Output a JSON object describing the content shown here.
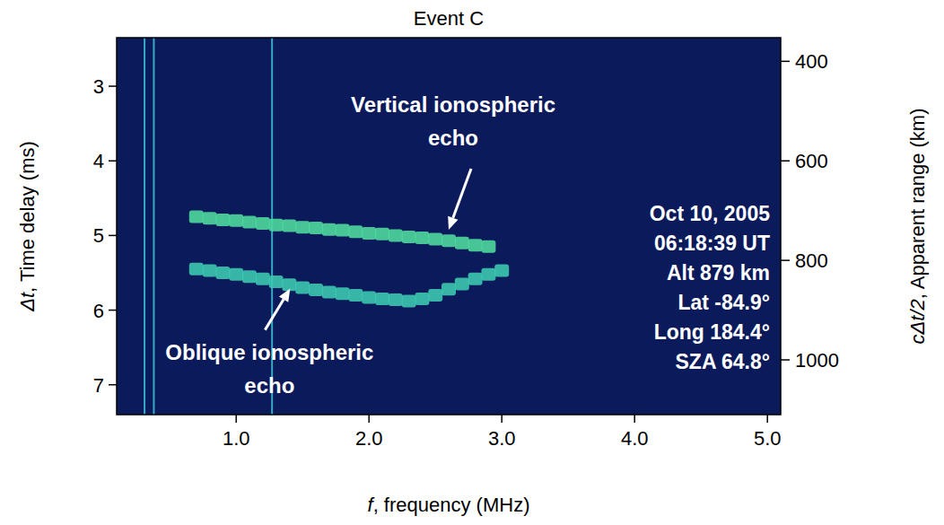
{
  "chart_data": {
    "type": "ionogram",
    "title": "Event C",
    "x_label": "f, frequency (MHz)",
    "y_label": "Δt, Time delay (ms)",
    "y2_label": "cΔt/2, Apparent range (km)",
    "xlim": [
      0.1,
      5.1
    ],
    "xticks": [
      {
        "value": 1,
        "label": "1.0"
      },
      {
        "value": 2,
        "label": "2.0"
      },
      {
        "value": 3,
        "label": "3.0"
      },
      {
        "value": 4,
        "label": "4.0"
      },
      {
        "value": 5,
        "label": "5.0"
      }
    ],
    "ylim": [
      2.35,
      7.4
    ],
    "yticks": [
      3,
      4,
      5,
      6,
      7
    ],
    "y2lim": [
      352.5,
      1110
    ],
    "y2ticks": [
      400,
      600,
      800,
      1000
    ],
    "series": [
      {
        "color": "#4fd89c",
        "marker": "square",
        "x": [
          0.7,
          0.8,
          0.9,
          1.0,
          1.1,
          1.2,
          1.3,
          1.4,
          1.5,
          1.6,
          1.7,
          1.8,
          1.9,
          2.0,
          2.1,
          2.2,
          2.3,
          2.4,
          2.5,
          2.6,
          2.7,
          2.8,
          2.9
        ],
        "values": [
          4.75,
          4.77,
          4.79,
          4.8,
          4.82,
          4.84,
          4.86,
          4.87,
          4.89,
          4.9,
          4.92,
          4.93,
          4.95,
          4.97,
          4.98,
          5.0,
          5.02,
          5.03,
          5.05,
          5.07,
          5.1,
          5.13,
          5.15
        ]
      },
      {
        "color": "#3cc8b0",
        "marker": "square",
        "x": [
          0.7,
          0.8,
          0.9,
          1.0,
          1.1,
          1.2,
          1.3,
          1.4,
          1.5,
          1.6,
          1.7,
          1.8,
          1.9,
          2.0,
          2.1,
          2.2,
          2.3,
          2.4,
          2.5,
          2.6,
          2.7,
          2.8,
          2.9,
          3.0
        ],
        "values": [
          5.45,
          5.47,
          5.5,
          5.52,
          5.55,
          5.58,
          5.62,
          5.66,
          5.7,
          5.73,
          5.76,
          5.78,
          5.8,
          5.83,
          5.85,
          5.86,
          5.88,
          5.85,
          5.8,
          5.72,
          5.65,
          5.58,
          5.52,
          5.47
        ]
      }
    ],
    "interference_f": [
      0.31,
      0.38,
      1.27
    ],
    "annotations": [
      {
        "lines": [
          "Vertical ionospheric",
          "echo"
        ],
        "x": 2.6,
        "y": 4.97
      },
      {
        "lines": [
          "Oblique ionospheric",
          "echo"
        ],
        "x": 1.42,
        "y": 5.64
      }
    ],
    "info": [
      "Oct 10, 2005",
      "06:18:39 UT",
      "Alt  879 km",
      "Lat -84.9°",
      "Long 184.4°",
      "SZA 64.8°"
    ]
  }
}
